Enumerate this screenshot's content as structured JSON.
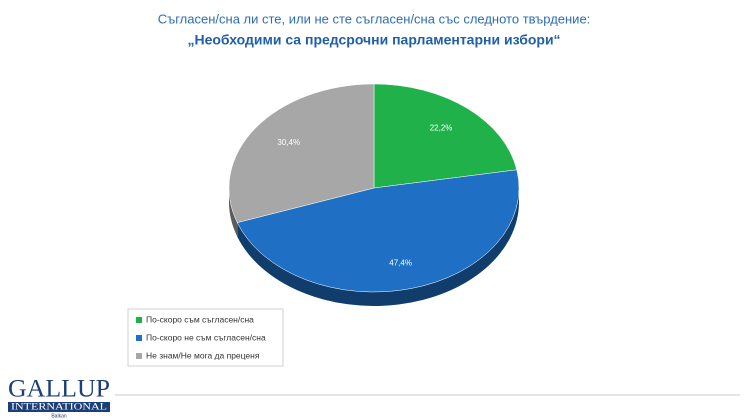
{
  "chart_data": {
    "type": "pie",
    "title": "Съгласен/сна ли сте, или не сте съгласен/сна със следното твърдение:",
    "subtitle": "„Необходими са предсрочни парламентарни избори“",
    "categories": [
      "По-скоро съм съгласен/сна",
      "По-скоро не съм съгласен/сна",
      "Не знам/Не мога да преценя"
    ],
    "values": [
      22.2,
      47.4,
      30.4
    ],
    "value_labels": [
      "22,2%",
      "47,4%",
      "30,4%"
    ],
    "colors": [
      "#21b14b",
      "#1f6fc4",
      "#a7a7a7"
    ],
    "legend": "bottom-left"
  },
  "logo": {
    "name": "GALLUP",
    "sub": "INTERNATIONAL",
    "region": "Balkan"
  }
}
